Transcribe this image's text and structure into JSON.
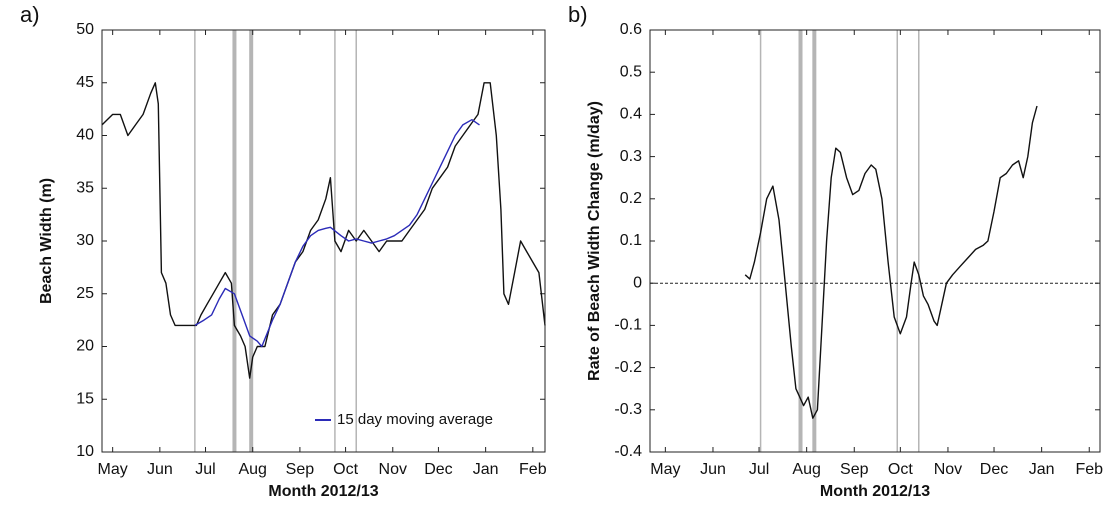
{
  "chart_data": [
    {
      "type": "line",
      "panel_label": "a)",
      "xlabel": "Month 2012/13",
      "ylabel": "Beach Width (m)",
      "xlim": [
        -7,
        284
      ],
      "ylim": [
        10,
        50
      ],
      "xticks": [
        {
          "value": 0,
          "label": "May"
        },
        {
          "value": 31,
          "label": "Jun"
        },
        {
          "value": 61,
          "label": "Jul"
        },
        {
          "value": 92,
          "label": "Aug"
        },
        {
          "value": 123,
          "label": "Sep"
        },
        {
          "value": 153,
          "label": "Oct"
        },
        {
          "value": 184,
          "label": "Nov"
        },
        {
          "value": 214,
          "label": "Dec"
        },
        {
          "value": 245,
          "label": "Jan"
        },
        {
          "value": 276,
          "label": "Feb"
        }
      ],
      "yticks": [
        10,
        15,
        20,
        25,
        30,
        35,
        40,
        45,
        50
      ],
      "vlines": [
        54,
        80,
        91,
        146,
        160
      ],
      "vline_widths": [
        1.5,
        4,
        4,
        1.5,
        1.5
      ],
      "vline_color": "#b5b5b5",
      "legend_loc": "lower right",
      "series": [
        {
          "color": "#111111",
          "x": [
            -7,
            0,
            5,
            10,
            15,
            20,
            25,
            28,
            30,
            32,
            35,
            38,
            41,
            45,
            50,
            55,
            58,
            62,
            66,
            70,
            74,
            78,
            80,
            84,
            87,
            90,
            92,
            95,
            100,
            105,
            110,
            115,
            120,
            125,
            130,
            135,
            140,
            143,
            146,
            150,
            155,
            160,
            165,
            170,
            175,
            180,
            185,
            190,
            195,
            200,
            205,
            210,
            215,
            220,
            225,
            230,
            235,
            240,
            244,
            248,
            252,
            255,
            257,
            260,
            264,
            268,
            272,
            276,
            280,
            284
          ],
          "values": [
            41,
            42,
            42,
            40,
            41,
            42,
            44,
            45,
            43,
            27,
            26,
            23,
            22,
            22,
            22,
            22,
            23,
            24,
            25,
            26,
            27,
            26,
            22,
            21,
            20,
            17,
            19,
            20,
            20,
            23,
            24,
            26,
            28,
            29,
            31,
            32,
            34,
            36,
            30,
            29,
            31,
            30,
            31,
            30,
            29,
            30,
            30,
            30,
            31,
            32,
            33,
            35,
            36,
            37,
            39,
            40,
            41,
            42,
            45,
            45,
            40,
            33,
            25,
            24,
            27,
            30,
            29,
            28,
            27,
            22
          ]
        },
        {
          "name": "15 day moving average",
          "color": "#2b2bb8",
          "x": [
            54,
            60,
            65,
            70,
            74,
            80,
            85,
            90,
            95,
            98,
            105,
            110,
            115,
            120,
            125,
            130,
            135,
            140,
            143,
            150,
            155,
            160,
            165,
            170,
            175,
            180,
            185,
            190,
            195,
            200,
            205,
            210,
            215,
            220,
            225,
            230,
            236,
            241
          ],
          "values": [
            22,
            22.5,
            23,
            24.5,
            25.5,
            25,
            23,
            21,
            20.5,
            20,
            22.5,
            24,
            26,
            28,
            29.5,
            30.5,
            31,
            31.2,
            31.3,
            30.5,
            30,
            30.2,
            30,
            29.8,
            30,
            30.2,
            30.5,
            31,
            31.5,
            32.5,
            34,
            35.5,
            37,
            38.5,
            40,
            41,
            41.5,
            41
          ]
        }
      ]
    },
    {
      "type": "line",
      "panel_label": "b)",
      "xlabel": "Month 2012/13",
      "ylabel": "Rate of Beach Width Change (m/day)",
      "xlim": [
        -10,
        283
      ],
      "ylim": [
        -0.4,
        0.6
      ],
      "xticks": [
        {
          "value": 0,
          "label": "May"
        },
        {
          "value": 31,
          "label": "Jun"
        },
        {
          "value": 61,
          "label": "Jul"
        },
        {
          "value": 92,
          "label": "Aug"
        },
        {
          "value": 123,
          "label": "Sep"
        },
        {
          "value": 153,
          "label": "Oct"
        },
        {
          "value": 184,
          "label": "Nov"
        },
        {
          "value": 214,
          "label": "Dec"
        },
        {
          "value": 245,
          "label": "Jan"
        },
        {
          "value": 276,
          "label": "Feb"
        }
      ],
      "yticks": [
        -0.4,
        -0.3,
        -0.2,
        -0.1,
        0,
        0.1,
        0.2,
        0.3,
        0.4,
        0.5,
        0.6
      ],
      "vlines": [
        62,
        88,
        97,
        151,
        165
      ],
      "vline_widths": [
        1.5,
        4,
        4,
        1.5,
        1.5
      ],
      "vline_color": "#b5b5b5",
      "hline": 0,
      "series": [
        {
          "color": "#111111",
          "x": [
            52,
            55,
            58,
            62,
            66,
            70,
            74,
            78,
            82,
            85,
            90,
            93,
            96,
            99,
            102,
            105,
            108,
            111,
            114,
            118,
            122,
            126,
            130,
            134,
            137,
            141,
            145,
            149,
            153,
            157,
            160,
            162,
            165,
            168,
            171,
            175,
            177,
            180,
            183,
            187,
            192,
            197,
            202,
            207,
            210,
            214,
            218,
            222,
            226,
            230,
            233,
            236,
            239,
            242
          ],
          "values": [
            0.02,
            0.01,
            0.05,
            0.12,
            0.2,
            0.23,
            0.15,
            0.0,
            -0.15,
            -0.25,
            -0.29,
            -0.27,
            -0.32,
            -0.3,
            -0.1,
            0.1,
            0.25,
            0.32,
            0.31,
            0.25,
            0.21,
            0.22,
            0.26,
            0.28,
            0.27,
            0.2,
            0.05,
            -0.08,
            -0.12,
            -0.08,
            0.0,
            0.05,
            0.02,
            -0.03,
            -0.05,
            -0.09,
            -0.1,
            -0.05,
            0.0,
            0.02,
            0.04,
            0.06,
            0.08,
            0.09,
            0.1,
            0.17,
            0.25,
            0.26,
            0.28,
            0.29,
            0.25,
            0.3,
            0.38,
            0.42
          ]
        }
      ]
    }
  ]
}
